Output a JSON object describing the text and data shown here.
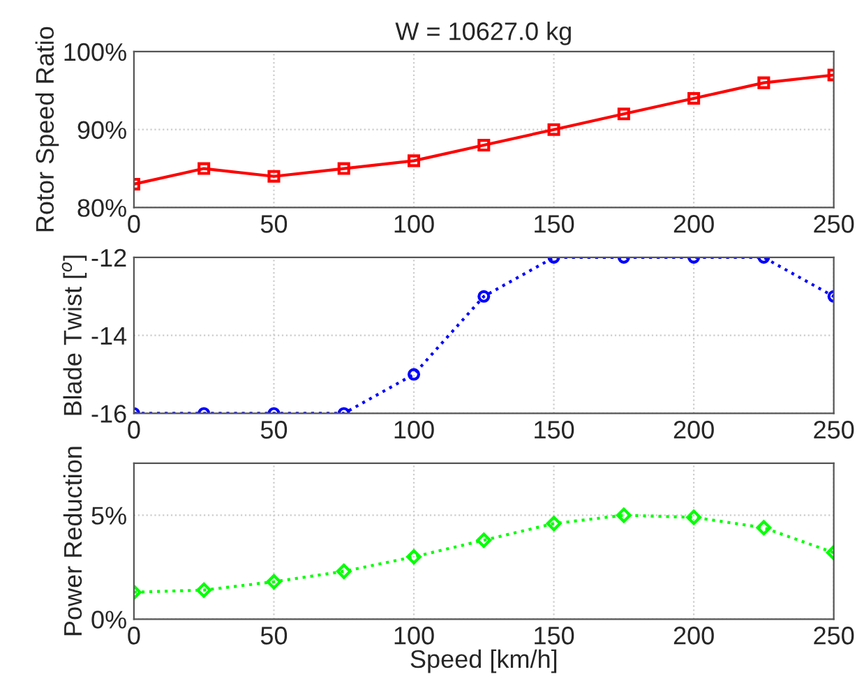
{
  "chart_data": [
    {
      "type": "line",
      "title": "W = 10627.0 kg",
      "ylabel": "Rotor Speed Ratio",
      "x": [
        0,
        25,
        50,
        75,
        100,
        125,
        150,
        175,
        200,
        225,
        250
      ],
      "series": [
        {
          "color": "#ff0000",
          "values": [
            83,
            85,
            84,
            85,
            86,
            88,
            90,
            92,
            94,
            96,
            97
          ]
        }
      ],
      "xlim": [
        0,
        250
      ],
      "xticks": [
        0,
        50,
        100,
        150,
        200,
        250
      ],
      "ylim": [
        80,
        100
      ],
      "yticks": [
        {
          "value": 80,
          "label": "80%"
        },
        {
          "value": 90,
          "label": "90%"
        },
        {
          "value": 100,
          "label": "100%"
        }
      ],
      "grid": true,
      "marker": "square",
      "line_style": "solid"
    },
    {
      "type": "line",
      "ylabel": "Blade Twist [$^{o}$]",
      "x": [
        0,
        25,
        50,
        75,
        100,
        125,
        150,
        175,
        200,
        225,
        250
      ],
      "series": [
        {
          "color": "#0000ff",
          "values": [
            -16,
            -16,
            -16,
            -16,
            -15,
            -13,
            -12,
            -12,
            -12,
            -12,
            -13
          ]
        }
      ],
      "xlim": [
        0,
        250
      ],
      "xticks": [
        0,
        50,
        100,
        150,
        200,
        250
      ],
      "ylim": [
        -16,
        -12
      ],
      "yticks": [
        -16,
        -14,
        -12
      ],
      "grid": true,
      "marker": "circle",
      "line_style": "dotted"
    },
    {
      "type": "line",
      "ylabel": "Power Reduction",
      "xlabel": "Speed [km/h]",
      "x": [
        0,
        25,
        50,
        75,
        100,
        125,
        150,
        175,
        200,
        225,
        250
      ],
      "series": [
        {
          "color": "#00ff00",
          "values": [
            1.3,
            1.4,
            1.8,
            2.3,
            3.0,
            3.8,
            4.6,
            5.0,
            4.9,
            4.4,
            3.2
          ]
        }
      ],
      "xlim": [
        0,
        250
      ],
      "xticks": [
        0,
        50,
        100,
        150,
        200,
        250
      ],
      "ylim": [
        0,
        7.5
      ],
      "yticks": [
        {
          "value": 0,
          "label": "0%"
        },
        {
          "value": 5,
          "label": "5%"
        }
      ],
      "grid": true,
      "marker": "diamond",
      "line_style": "dotted"
    }
  ]
}
